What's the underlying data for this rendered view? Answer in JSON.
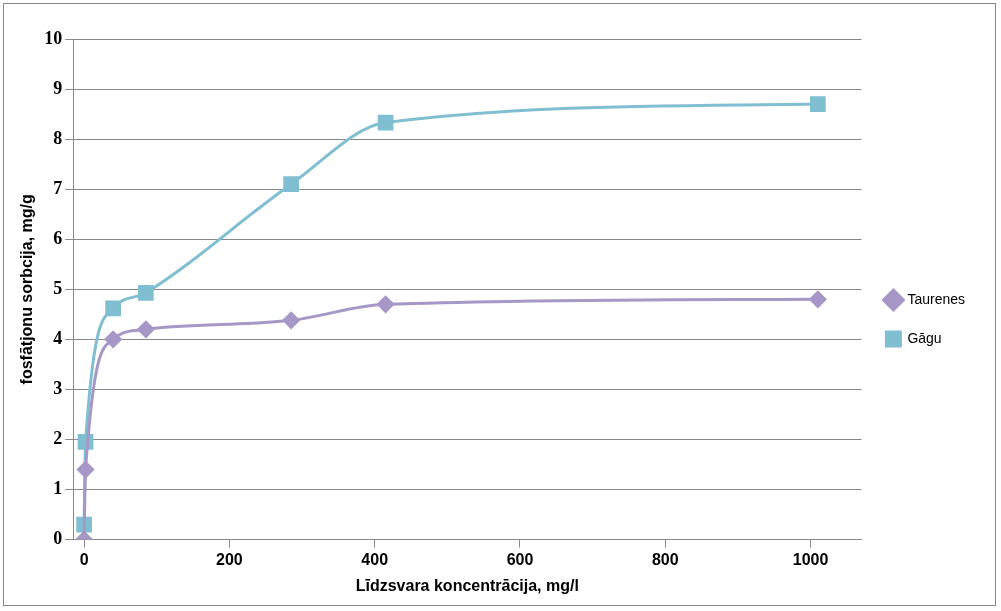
{
  "chart_data": {
    "type": "line",
    "xlabel": "Līdzsvara koncentrācija, mg/l",
    "ylabel": "fosfātjonu sorbcija, mg/g",
    "xlim": [
      -15,
      1070
    ],
    "xticks": [
      0,
      200,
      400,
      600,
      800,
      1000
    ],
    "ylim": [
      0,
      10
    ],
    "yticks": [
      0,
      1,
      2,
      3,
      4,
      5,
      6,
      7,
      8,
      9,
      10
    ],
    "grid": "y",
    "legend": "right",
    "series": [
      {
        "name": "Taurenes",
        "color": "#a797c6",
        "marker": "diamond",
        "x": [
          0,
          2,
          40,
          85,
          285,
          415,
          1010
        ],
        "values": [
          0,
          1.4,
          4.0,
          4.2,
          4.38,
          4.7,
          4.8
        ]
      },
      {
        "name": "Gāgu",
        "color": "#80bfd2",
        "marker": "square",
        "x": [
          0,
          2,
          40,
          85,
          285,
          415,
          1010
        ],
        "values": [
          0.3,
          1.95,
          4.62,
          4.93,
          7.1,
          8.33,
          8.7
        ]
      }
    ]
  }
}
